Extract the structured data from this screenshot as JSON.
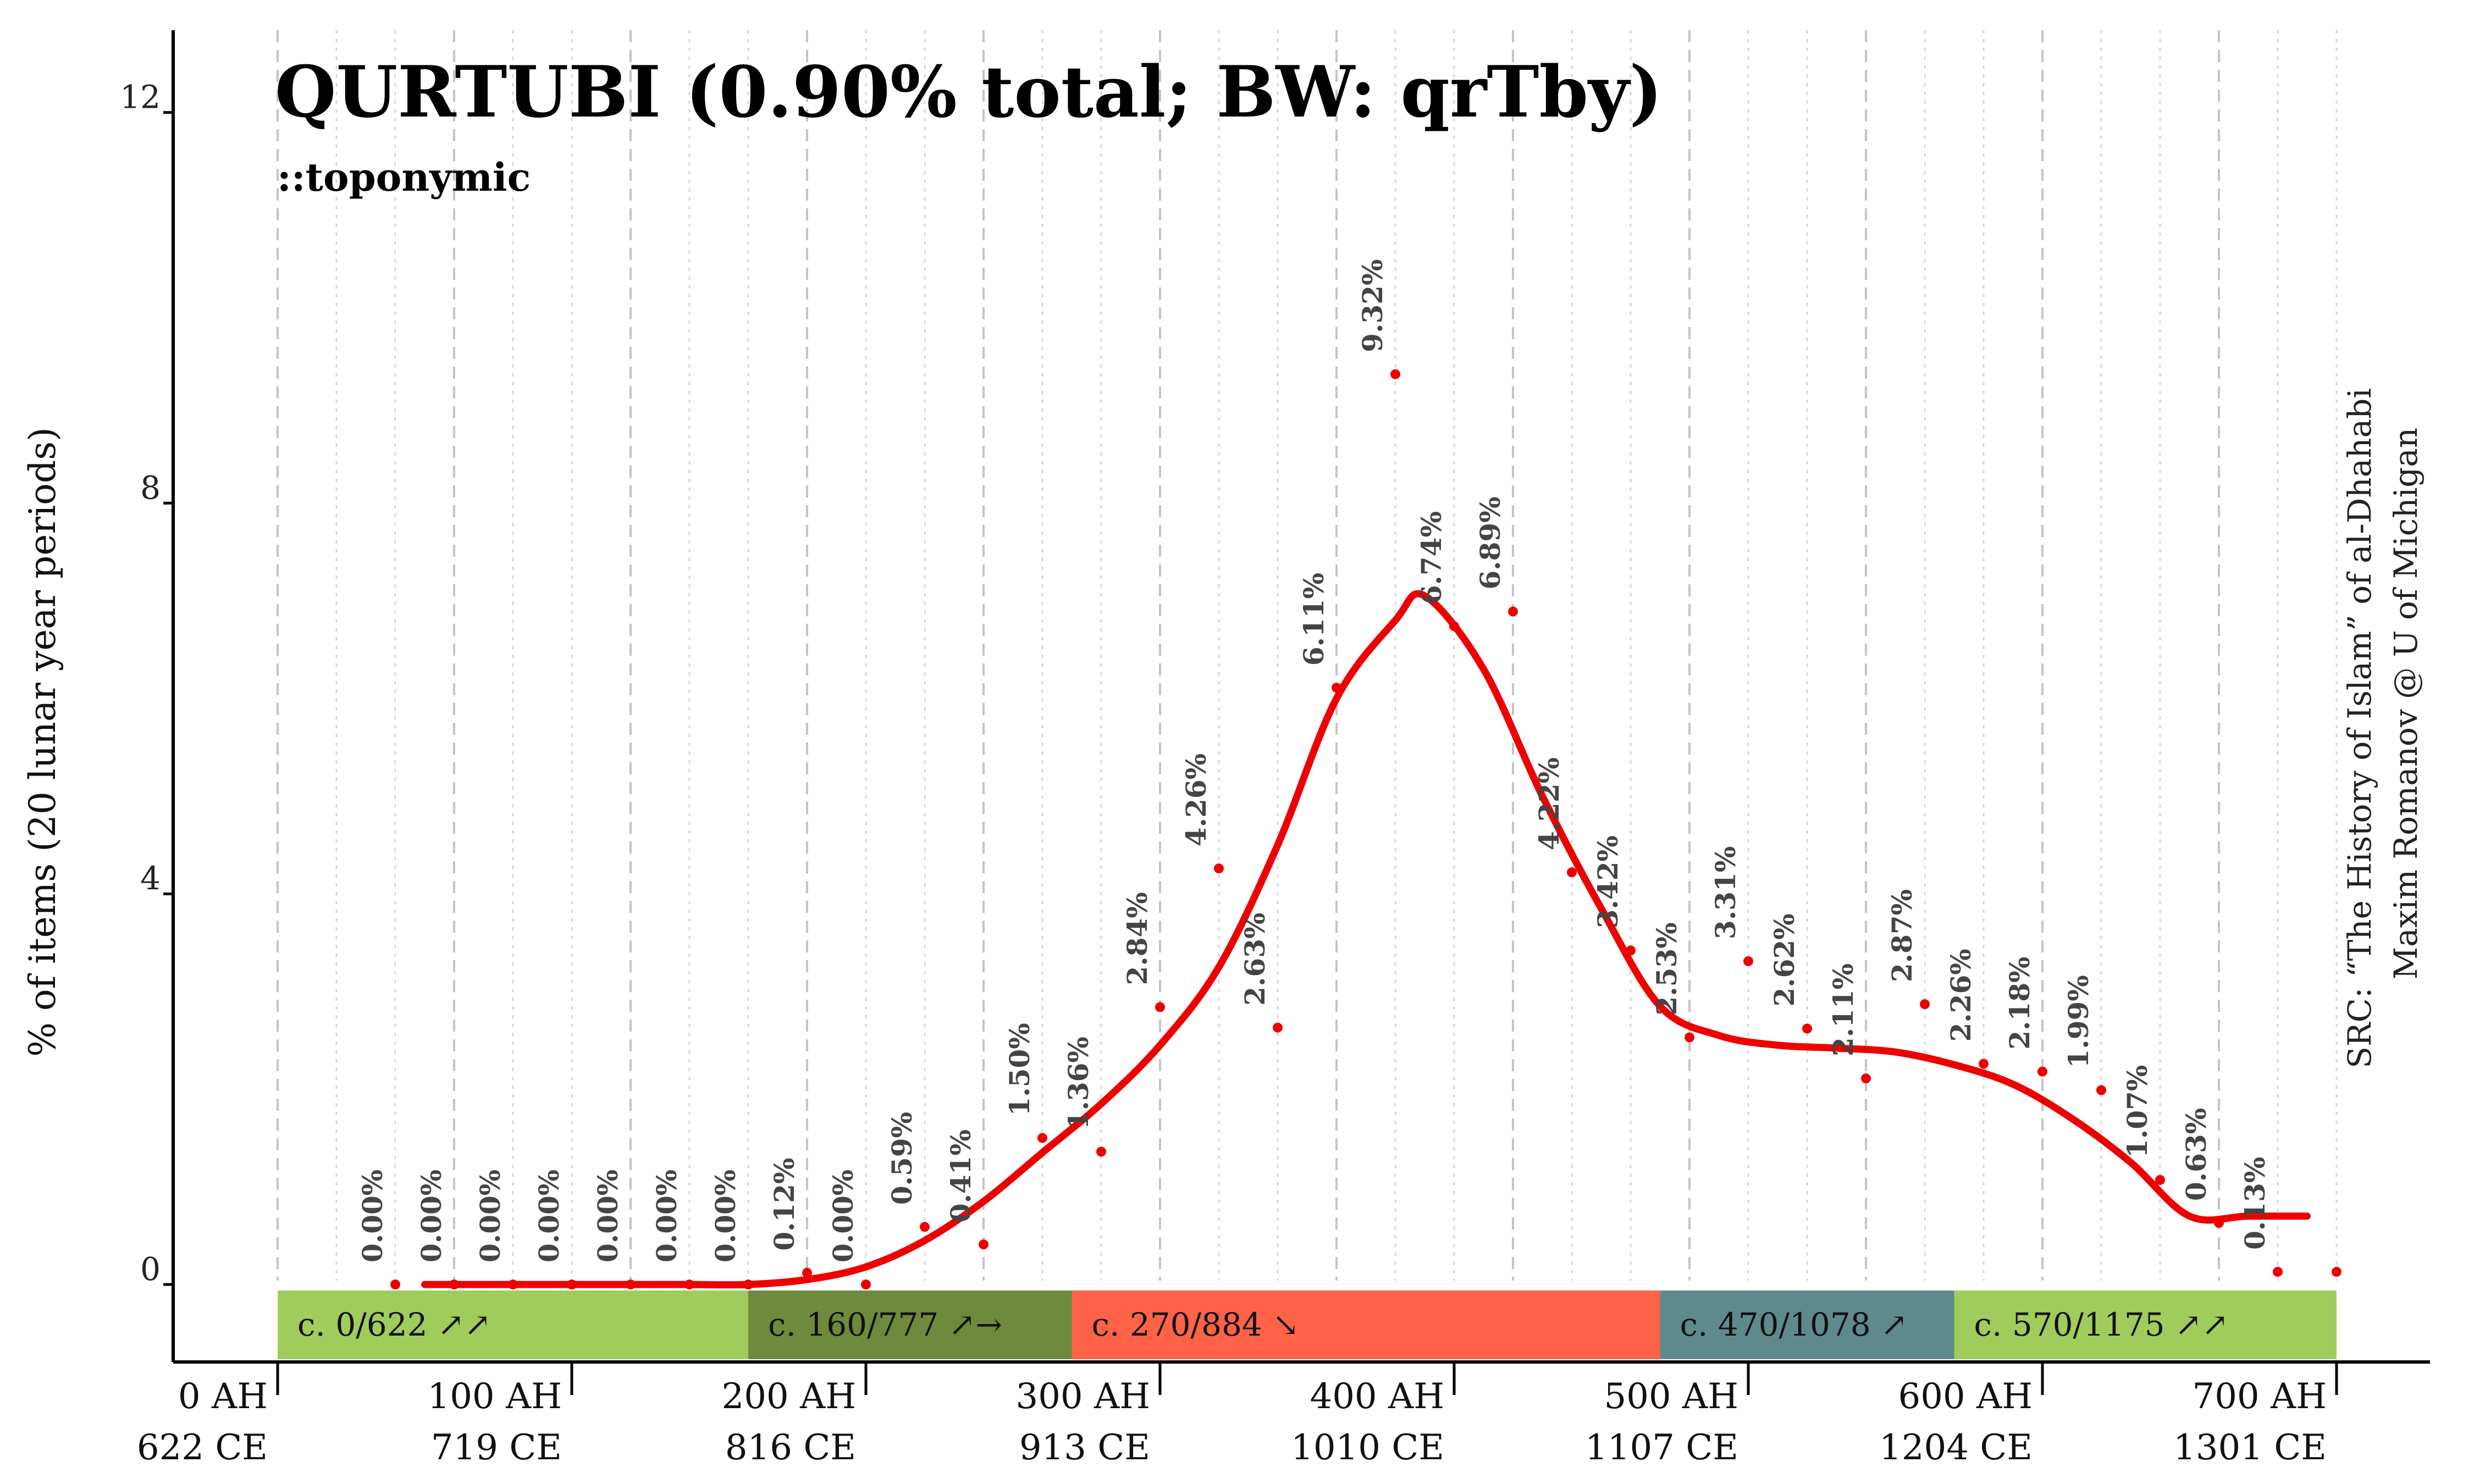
{
  "chart_data": {
    "type": "line",
    "title": "QURTUBI (0.90% total; BW: qrTby)",
    "subtitle": "::toponymic",
    "ylabel": "% of items (20 lunar year periods)",
    "ylim": [
      0,
      12.5
    ],
    "xlim": [
      -55,
      750
    ],
    "y_ticks": [
      0,
      4,
      8,
      12
    ],
    "x_ticks": [
      {
        "ah": 0,
        "line1": "0 AH",
        "line2": "622 CE"
      },
      {
        "ah": 100,
        "line1": "100 AH",
        "line2": "719 CE"
      },
      {
        "ah": 200,
        "line1": "200 AH",
        "line2": "816 CE"
      },
      {
        "ah": 300,
        "line1": "300 AH",
        "line2": "913 CE"
      },
      {
        "ah": 400,
        "line1": "400 AH",
        "line2": "1010 CE"
      },
      {
        "ah": 500,
        "line1": "500 AH",
        "line2": "1107 CE"
      },
      {
        "ah": 600,
        "line1": "600 AH",
        "line2": "1204 CE"
      },
      {
        "ah": 700,
        "line1": "700 AH",
        "line2": "1301 CE"
      }
    ],
    "series": [
      {
        "kind": "points",
        "color": "#ee0000",
        "x": [
          40,
          60,
          80,
          100,
          120,
          140,
          160,
          180,
          200,
          220,
          240,
          260,
          280,
          300,
          320,
          340,
          360,
          380,
          400,
          420,
          440,
          460,
          480,
          500,
          520,
          540,
          560,
          580,
          600,
          620,
          640,
          660,
          680,
          700
        ],
        "values": [
          0.0,
          0.0,
          0.0,
          0.0,
          0.0,
          0.0,
          0.0,
          0.12,
          0.0,
          0.59,
          0.41,
          1.5,
          1.36,
          2.84,
          4.26,
          2.63,
          6.11,
          9.32,
          6.74,
          6.89,
          4.22,
          3.42,
          2.53,
          3.31,
          2.62,
          2.11,
          2.87,
          2.26,
          2.18,
          1.99,
          1.07,
          0.63,
          0.13,
          0.13
        ],
        "labels": [
          "0.00%",
          "0.00%",
          "0.00%",
          "0.00%",
          "0.00%",
          "0.00%",
          "0.00%",
          "0.12%",
          "0.00%",
          "0.59%",
          "0.41%",
          "1.50%",
          "1.36%",
          "2.84%",
          "4.26%",
          "2.63%",
          "6.11%",
          "9.32%",
          "6.74%",
          "6.89%",
          "4.22%",
          "3.42%",
          "2.53%",
          "3.31%",
          "2.62%",
          "2.11%",
          "2.87%",
          "2.26%",
          "2.18%",
          "1.99%",
          "1.07%",
          "0.63%",
          "0.13%",
          ""
        ]
      },
      {
        "kind": "smooth-line",
        "color": "#ee0000",
        "x": [
          50,
          60,
          80,
          100,
          120,
          140,
          160,
          180,
          200,
          220,
          240,
          260,
          280,
          300,
          320,
          340,
          360,
          380,
          390,
          410,
          430,
          450,
          470,
          490,
          510,
          530,
          550,
          570,
          590,
          610,
          630,
          650,
          670,
          690
        ],
        "values": [
          0.0,
          0.0,
          0.0,
          0.0,
          0.0,
          0.0,
          0.0,
          0.05,
          0.18,
          0.45,
          0.85,
          1.35,
          1.85,
          2.45,
          3.25,
          4.5,
          6.0,
          6.8,
          7.05,
          6.3,
          5.0,
          3.85,
          2.85,
          2.55,
          2.45,
          2.42,
          2.38,
          2.25,
          2.05,
          1.7,
          1.25,
          0.7,
          0.7,
          0.7
        ]
      }
    ],
    "periods": [
      {
        "label": "c. 0/622 ↗↗",
        "start": 0,
        "end": 160,
        "color": "#a0cc5c"
      },
      {
        "label": "c. 160/777 ↗→",
        "start": 160,
        "end": 270,
        "color": "#6e8a3c"
      },
      {
        "label": "c. 270/884 ↘",
        "start": 270,
        "end": 470,
        "color": "#ff6347"
      },
      {
        "label": "c. 470/1078 ↗",
        "start": 470,
        "end": 570,
        "color": "#5f8a8b"
      },
      {
        "label": "c. 570/1175 ↗↗",
        "start": 570,
        "end": 700,
        "color": "#a0cc5c"
      }
    ],
    "source_line1": "SRC: “The History of Islam” of al-Dhahabi",
    "source_line2": "Maxim Romanov @ U of Michigan",
    "grid": "vertical dashed every 20 AH",
    "legend": "none"
  }
}
